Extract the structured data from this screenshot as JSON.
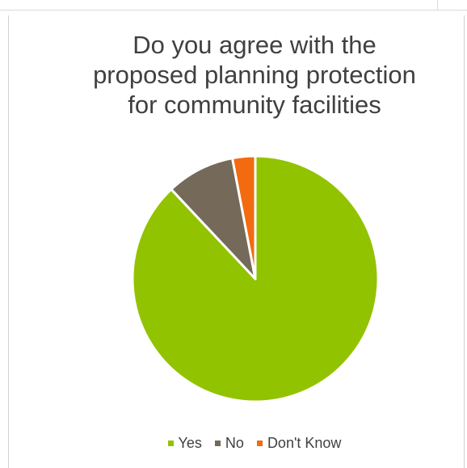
{
  "chart_data": {
    "type": "pie",
    "title": [
      "Do you agree with the",
      "proposed planning protection",
      "for community facilities"
    ],
    "categories": [
      "Yes",
      "No",
      "Don't Know"
    ],
    "values": [
      88,
      9,
      3
    ],
    "colors": [
      "#92c300",
      "#756a59",
      "#f26b0f"
    ],
    "legend_position": "bottom"
  }
}
